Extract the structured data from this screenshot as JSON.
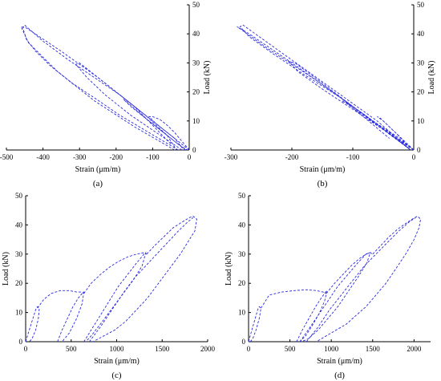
{
  "chart_data": [
    {
      "type": "line",
      "panel_label": "(a)",
      "xlabel": "Strain (μm/m)",
      "ylabel": "Load (kN)",
      "y_axis_side": "right",
      "xlim": [
        -500,
        0
      ],
      "ylim": [
        0,
        50
      ],
      "xticks": [
        -500,
        -400,
        -300,
        -200,
        -100,
        0
      ],
      "yticks": [
        0,
        10,
        20,
        30,
        40,
        50
      ],
      "grid": false,
      "series": [
        {
          "x": [
            0,
            -20,
            -40,
            -60,
            -80,
            -100,
            -110,
            -90,
            -60,
            -40,
            -20,
            0
          ],
          "y": [
            0,
            3,
            6,
            8.5,
            10.5,
            11.5,
            11.5,
            9,
            6,
            4,
            2,
            0
          ]
        },
        {
          "x": [
            -10,
            -60,
            -120,
            -160,
            -180,
            -170,
            -120,
            -70,
            -30,
            -5
          ],
          "y": [
            0,
            5,
            11,
            15,
            17.5,
            16.5,
            11,
            6,
            2,
            0
          ]
        },
        {
          "x": [
            -20,
            -90,
            -160,
            -230,
            -280,
            -310,
            -300,
            -240,
            -170,
            -100,
            -40,
            -15
          ],
          "y": [
            0,
            6,
            12,
            19,
            25,
            29.5,
            30,
            24,
            17,
            10,
            4,
            0
          ]
        },
        {
          "x": [
            -30,
            -110,
            -190,
            -260,
            -320,
            -380,
            -420,
            -445,
            -455,
            -450,
            -400,
            -330,
            -260,
            -190,
            -120,
            -60,
            -35
          ],
          "y": [
            0,
            6,
            12,
            18,
            23,
            29,
            34,
            38,
            42,
            43,
            37.5,
            31,
            25,
            19,
            12,
            5,
            0
          ]
        },
        {
          "x": [
            -40,
            -150,
            -260,
            -360,
            -440,
            -460,
            -445,
            -350,
            -250,
            -150,
            -50
          ],
          "y": [
            0,
            8,
            17,
            27,
            37,
            42.5,
            42,
            34,
            25,
            15,
            2
          ]
        }
      ]
    },
    {
      "type": "line",
      "panel_label": "(b)",
      "xlabel": "Strain (μm/m)",
      "ylabel": "Load (kN)",
      "y_axis_side": "right",
      "xlim": [
        -300,
        0
      ],
      "ylim": [
        0,
        50
      ],
      "xticks": [
        -300,
        -200,
        -100,
        0
      ],
      "yticks": [
        0,
        10,
        20,
        30,
        40,
        50
      ],
      "grid": false,
      "series": [
        {
          "x": [
            0,
            -15,
            -30,
            -45,
            -55,
            -60,
            -50,
            -30,
            -12,
            0
          ],
          "y": [
            0,
            3,
            6,
            9,
            11,
            11.5,
            10,
            6,
            2,
            0
          ]
        },
        {
          "x": [
            0,
            -30,
            -60,
            -90,
            -110,
            -118,
            -100,
            -70,
            -35,
            -5
          ],
          "y": [
            0,
            5,
            9,
            13,
            16,
            17,
            15,
            10,
            5,
            0
          ]
        },
        {
          "x": [
            0,
            -50,
            -100,
            -150,
            -190,
            -205,
            -195,
            -150,
            -100,
            -50,
            -5
          ],
          "y": [
            0,
            7,
            14,
            21,
            27,
            30.5,
            30,
            23,
            15,
            7,
            0
          ]
        },
        {
          "x": [
            0,
            -60,
            -120,
            -180,
            -230,
            -270,
            -285,
            -280,
            -240,
            -180,
            -120,
            -60,
            -5
          ],
          "y": [
            0,
            9,
            18,
            26,
            33,
            39,
            42.5,
            43,
            37,
            28,
            19,
            10,
            0
          ]
        },
        {
          "x": [
            -5,
            -80,
            -160,
            -240,
            -290,
            -270,
            -200,
            -120,
            -40
          ],
          "y": [
            0,
            12,
            24,
            35,
            42.5,
            40,
            30,
            18,
            4
          ]
        }
      ]
    },
    {
      "type": "line",
      "panel_label": "(c)",
      "xlabel": "Strain (μm/m)",
      "ylabel": "Load (kN)",
      "y_axis_side": "left",
      "xlim": [
        0,
        2000
      ],
      "ylim": [
        0,
        50
      ],
      "xticks": [
        0,
        500,
        1000,
        1500,
        2000
      ],
      "yticks": [
        0,
        10,
        20,
        30,
        40,
        50
      ],
      "grid": false,
      "series": [
        {
          "x": [
            0,
            40,
            80,
            110,
            130,
            150,
            140,
            110,
            70,
            40
          ],
          "y": [
            0,
            4,
            8,
            11,
            12,
            11.5,
            8,
            4,
            1,
            0
          ]
        },
        {
          "x": [
            130,
            200,
            280,
            380,
            480,
            560,
            620,
            640
          ],
          "y": [
            11.5,
            14.5,
            16.5,
            17.5,
            17.5,
            17,
            17,
            16.5
          ]
        },
        {
          "x": [
            350,
            400,
            460,
            520,
            580,
            620,
            640,
            620,
            560,
            480,
            400
          ],
          "y": [
            0,
            4,
            8,
            12,
            15,
            16.5,
            17,
            13,
            8,
            3,
            0
          ]
        },
        {
          "x": [
            640,
            720,
            820,
            920,
            1020,
            1120,
            1220,
            1300,
            1330
          ],
          "y": [
            16.5,
            20,
            23,
            25.5,
            27.5,
            29,
            30,
            30.5,
            30
          ]
        },
        {
          "x": [
            640,
            720,
            820,
            920,
            1020,
            1120,
            1220,
            1300,
            1320,
            1280,
            1180,
            1060,
            940,
            820,
            720,
            660
          ],
          "y": [
            0,
            4,
            9,
            14,
            19,
            23,
            27,
            30,
            30.5,
            26,
            21,
            16,
            11,
            6,
            2,
            0
          ]
        },
        {
          "x": [
            700,
            820,
            950,
            1080,
            1200,
            1320,
            1440,
            1560,
            1680,
            1780,
            1840
          ],
          "y": [
            0,
            5,
            11,
            17,
            22,
            26,
            30,
            34,
            38,
            41,
            42.5
          ]
        },
        {
          "x": [
            1330,
            1420,
            1520,
            1620,
            1720,
            1800,
            1840,
            1880,
            1860,
            1800,
            1700,
            1580,
            1460,
            1340,
            1220,
            1100,
            980,
            860,
            740
          ],
          "y": [
            30,
            33,
            36,
            39,
            41,
            42.5,
            43,
            42,
            38,
            35,
            30,
            25,
            20,
            15,
            11,
            7,
            4,
            2,
            0
          ]
        }
      ]
    },
    {
      "type": "line",
      "panel_label": "(d)",
      "xlabel": "Strain (μm/m)",
      "ylabel": "Load (kN)",
      "y_axis_side": "left",
      "xlim": [
        0,
        2200
      ],
      "ylim": [
        0,
        50
      ],
      "xticks": [
        0,
        500,
        1000,
        1500,
        2000
      ],
      "yticks": [
        0,
        10,
        20,
        30,
        40,
        50
      ],
      "grid": false,
      "series": [
        {
          "x": [
            0,
            40,
            80,
            110,
            130,
            150,
            130,
            90,
            50,
            20
          ],
          "y": [
            0,
            4,
            8,
            11,
            12,
            11.5,
            8,
            4,
            1,
            0
          ]
        },
        {
          "x": [
            150,
            250,
            400,
            550,
            700,
            820,
            900,
            940
          ],
          "y": [
            11.5,
            16,
            17,
            17.5,
            17.8,
            17.5,
            17,
            16.5
          ]
        },
        {
          "x": [
            580,
            650,
            730,
            810,
            880,
            930,
            950,
            920,
            860,
            780,
            690,
            620
          ],
          "y": [
            0,
            4,
            8,
            12,
            15,
            17,
            17.5,
            14,
            10,
            6,
            2,
            0
          ]
        },
        {
          "x": [
            940,
            1040,
            1140,
            1240,
            1340,
            1420,
            1470,
            1500
          ],
          "y": [
            16.5,
            20,
            23,
            26,
            28.5,
            30,
            30.5,
            30
          ]
        },
        {
          "x": [
            620,
            720,
            840,
            960,
            1080,
            1200,
            1320,
            1420,
            1470,
            1430,
            1320,
            1200,
            1080,
            960,
            840,
            720,
            640
          ],
          "y": [
            0,
            4,
            9,
            14,
            19,
            23,
            27,
            30,
            30.5,
            27,
            22,
            17,
            12,
            8,
            4,
            1,
            0
          ]
        },
        {
          "x": [
            700,
            840,
            980,
            1120,
            1260,
            1400,
            1540,
            1680,
            1820,
            1940,
            2020
          ],
          "y": [
            0,
            5,
            11,
            16,
            21,
            26,
            30,
            34,
            38,
            41,
            42.5
          ]
        },
        {
          "x": [
            1500,
            1600,
            1700,
            1800,
            1900,
            1980,
            2040,
            2080,
            2060,
            2000,
            1900,
            1780,
            1660,
            1540,
            1420,
            1300,
            1180,
            1060,
            940,
            820
          ],
          "y": [
            30,
            33,
            36,
            38.5,
            40.5,
            42,
            43,
            42,
            39,
            35,
            30,
            25,
            20,
            16,
            12,
            9,
            6,
            4,
            2,
            0
          ]
        }
      ]
    }
  ]
}
